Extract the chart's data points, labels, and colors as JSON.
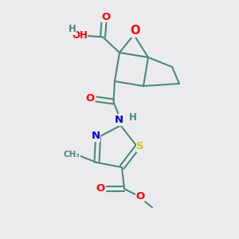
{
  "bg_color": "#ebebed",
  "bond_color": "#4a8a7e",
  "bond_width": 1.5,
  "atom_colors": {
    "O": "#ff0000",
    "N": "#0000cc",
    "S": "#cccc00",
    "C": "#4a8a7e",
    "H": "#4a8a7e"
  },
  "font_size": 8.5,
  "figsize": [
    3.0,
    3.0
  ],
  "dpi": 100
}
